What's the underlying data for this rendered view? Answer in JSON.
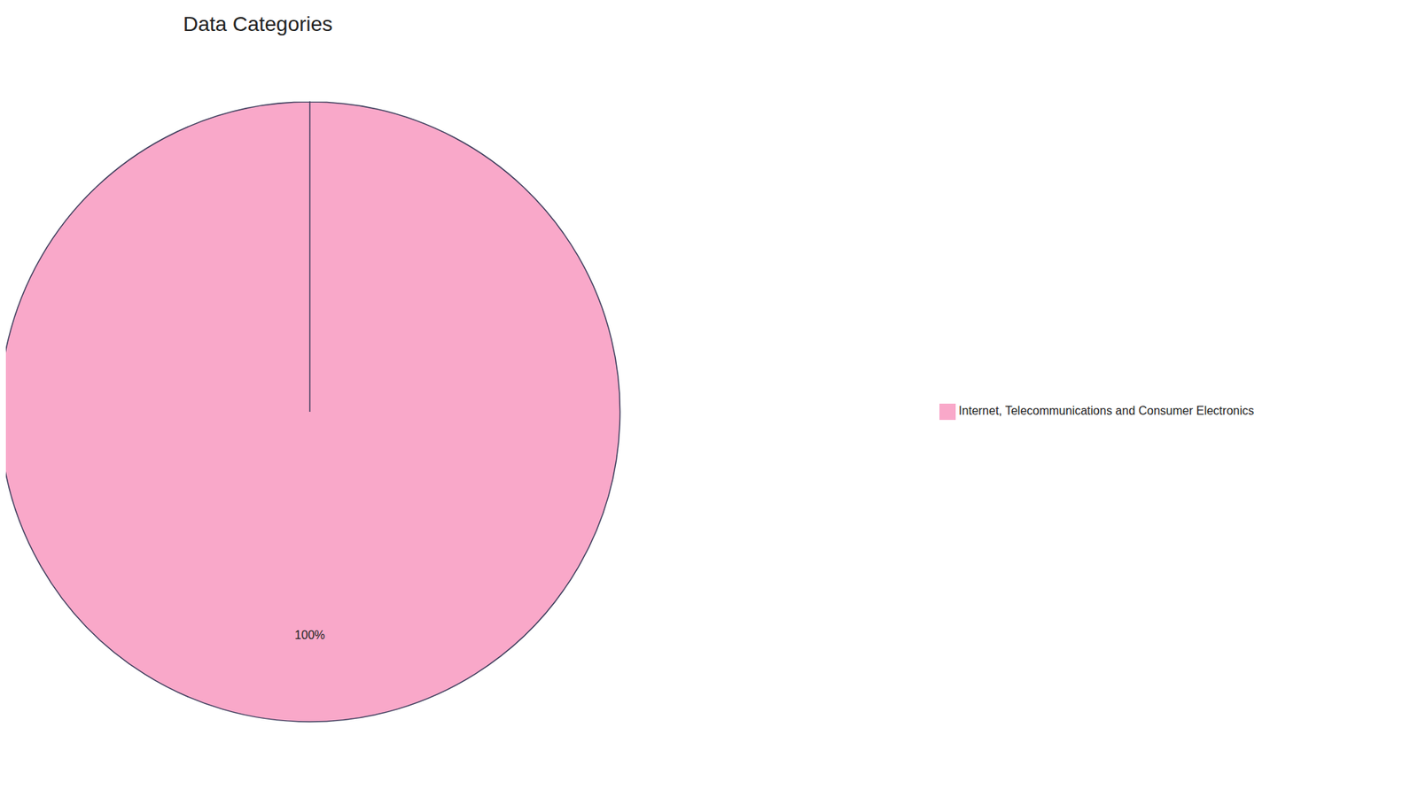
{
  "chart_data": {
    "type": "pie",
    "title": "Data Categories",
    "categories": [
      "Internet, Telecommunications and Consumer Electronics"
    ],
    "values": [
      100
    ],
    "value_labels": [
      "100%"
    ],
    "colors": [
      "#f9a8c9"
    ],
    "data_labels": true,
    "legend": "right"
  }
}
